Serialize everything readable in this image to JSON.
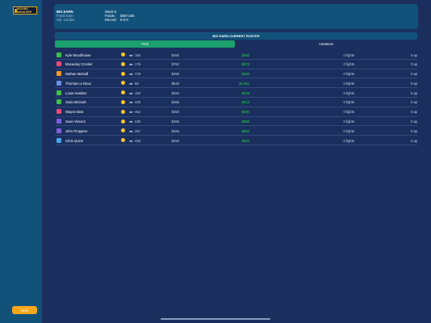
{
  "app": {
    "logo_line1": "BOXING",
    "logo_line2": "MANAGER",
    "next_label": "Next"
  },
  "info": {
    "col1": [
      "BIG EARN",
      "Frank Earn",
      "HQ: London"
    ],
    "col2": [
      "Week 6",
      "Funds:",
      "Record:"
    ],
    "col3": [
      "",
      "$487,635",
      "0-0-0"
    ]
  },
  "roster": {
    "header": "BIG EARN CURRENT ROSTER",
    "tabs": [
      "Pros",
      "Amateurs"
    ],
    "rows": [
      {
        "name": "Kyle Woodhouse",
        "avatar_color": "#3fbf4a",
        "count": "165",
        "fee": "$450",
        "earn": "$450",
        "fights": "0 fights",
        "ap": "0 ap"
      },
      {
        "name": "Macaulay Crocker",
        "avatar_color": "#e84a7a",
        "count": "176",
        "fee": "$782",
        "earn": "$876",
        "fights": "0 fights",
        "ap": "0 ap"
      },
      {
        "name": "Nathan Metcalf",
        "avatar_color": "#f29a2a",
        "count": "178",
        "fee": "$450",
        "earn": "$450",
        "fights": "0 fights",
        "ap": "0 ap"
      },
      {
        "name": "Thomas Le Deux",
        "avatar_color": "#6a8fe6",
        "count": "58",
        "fee": "$840",
        "earn": "$1,051",
        "fights": "0 fights",
        "ap": "0 ap"
      },
      {
        "name": "Louie Haskins",
        "avatar_color": "#3fbf4a",
        "count": "102",
        "fee": "$450",
        "earn": "$526",
        "fights": "0 fights",
        "ap": "0 ap"
      },
      {
        "name": "Seán McGurk",
        "avatar_color": "#3fbf4a",
        "count": "426",
        "fee": "$466",
        "earn": "$616",
        "fights": "0 fights",
        "ap": "0 ap"
      },
      {
        "name": "Wayne Best",
        "avatar_color": "#e84a7a",
        "count": "462",
        "fee": "$450",
        "earn": "$590",
        "fights": "0 fights",
        "ap": "0 ap"
      },
      {
        "name": "Sean Vincent",
        "avatar_color": "#7b5fd9",
        "count": "235",
        "fee": "$450",
        "earn": "$685",
        "fights": "0 fights",
        "ap": "0 ap"
      },
      {
        "name": "John Proppere",
        "avatar_color": "#7b5fd9",
        "count": "267",
        "fee": "$450",
        "earn": "$556",
        "fights": "0 fights",
        "ap": "0 ap"
      },
      {
        "name": "Chris Quinn",
        "avatar_color": "#4aa6e8",
        "count": "429",
        "fee": "$450",
        "earn": "$500",
        "fights": "0 fights",
        "ap": "2 ap"
      }
    ]
  }
}
